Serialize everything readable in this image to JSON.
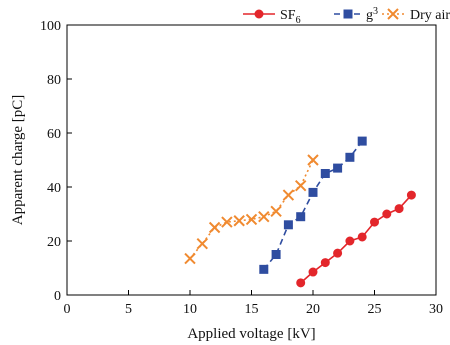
{
  "chart_data": {
    "type": "line",
    "xlabel": "Applied voltage [kV]",
    "ylabel": "Apparent charge [pC]",
    "xlim": [
      0,
      30
    ],
    "ylim": [
      0,
      100
    ],
    "x_ticks": [
      0,
      5,
      10,
      15,
      20,
      25,
      30
    ],
    "y_ticks": [
      0,
      20,
      40,
      60,
      80,
      100
    ],
    "grid": false,
    "legend_position": "top-right",
    "series": [
      {
        "name": "SF6",
        "name_main": "SF",
        "name_sub": "6",
        "color": "#e3262b",
        "marker": "circle",
        "line_style": "solid",
        "points": [
          [
            19,
            4.5
          ],
          [
            20,
            8.5
          ],
          [
            21,
            12
          ],
          [
            22,
            15.5
          ],
          [
            23,
            20
          ],
          [
            24,
            21.5
          ],
          [
            25,
            27
          ],
          [
            26,
            30
          ],
          [
            27,
            32
          ],
          [
            28,
            37
          ]
        ]
      },
      {
        "name": "g3",
        "name_main": "g",
        "name_sup": "3",
        "color": "#2f4da0",
        "marker": "square",
        "line_style": "dashed",
        "points": [
          [
            16,
            9.5
          ],
          [
            17,
            15
          ],
          [
            18,
            26
          ],
          [
            19,
            29
          ],
          [
            20,
            38
          ],
          [
            21,
            45
          ],
          [
            22,
            47
          ],
          [
            23,
            51
          ],
          [
            24,
            57
          ]
        ]
      },
      {
        "name": "Dry air",
        "name_main": "Dry air",
        "color": "#f08a30",
        "marker": "x",
        "line_style": "dotted",
        "points": [
          [
            10,
            13.5
          ],
          [
            11,
            19
          ],
          [
            12,
            25
          ],
          [
            13,
            27
          ],
          [
            14,
            27.5
          ],
          [
            15,
            28
          ],
          [
            16,
            29
          ],
          [
            17,
            31
          ],
          [
            18,
            37
          ],
          [
            19,
            40.5
          ],
          [
            20,
            50
          ]
        ]
      }
    ]
  }
}
